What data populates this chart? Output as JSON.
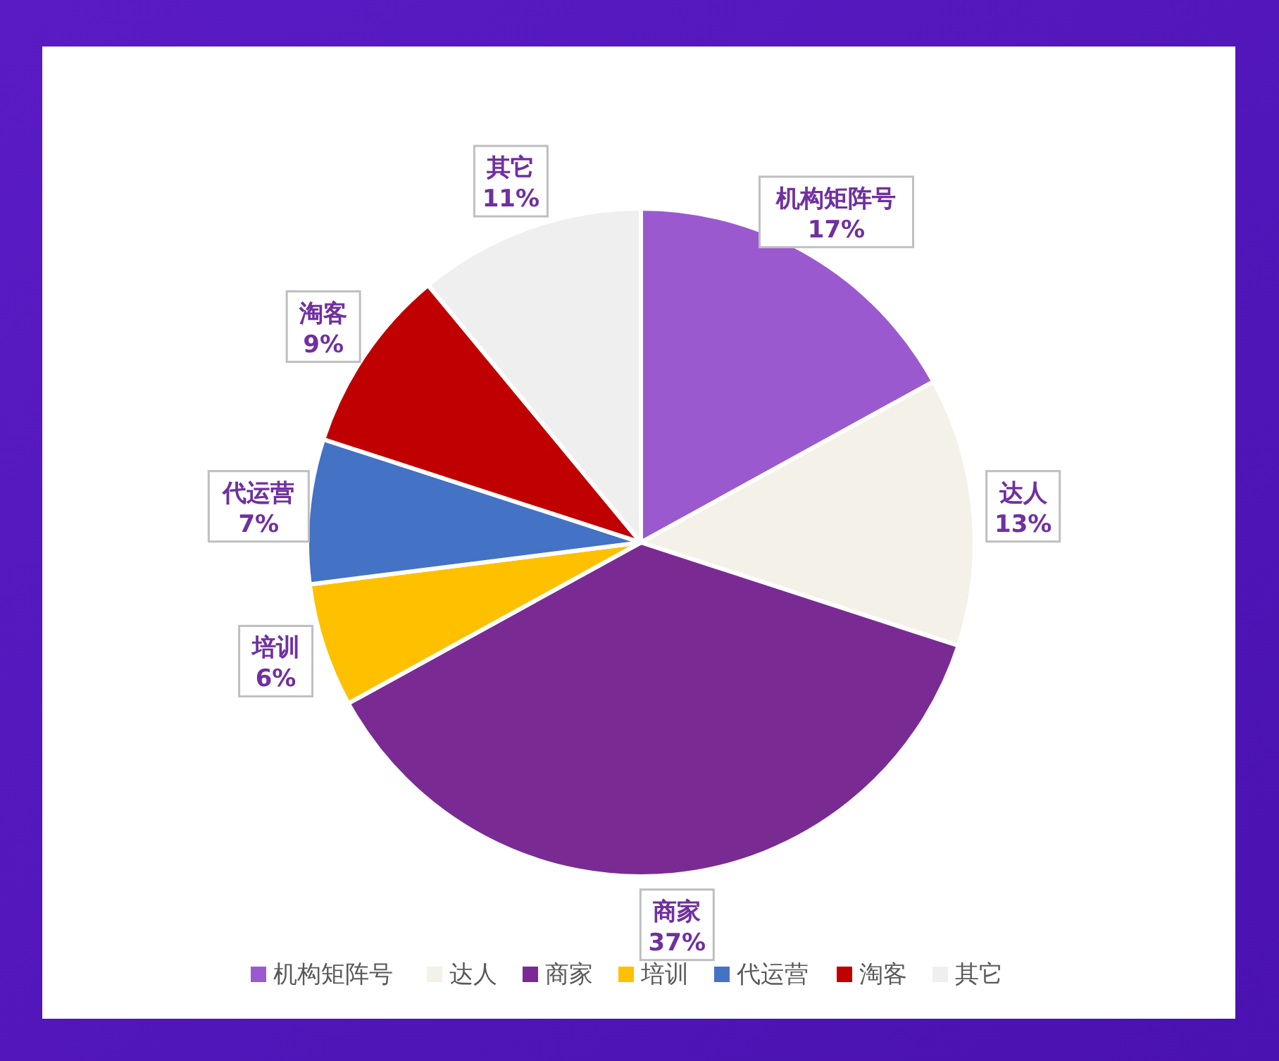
{
  "chart_data": {
    "type": "pie",
    "categories": [
      "机构矩阵号",
      "达人",
      "商家",
      "培训",
      "代运营",
      "淘客",
      "其它"
    ],
    "values": [
      17,
      13,
      37,
      6,
      7,
      9,
      11
    ],
    "colors": [
      "#9b59cf",
      "#f4f1e8",
      "#7a2b93",
      "#ffc000",
      "#4472c4",
      "#c00000",
      "#efefef"
    ],
    "value_labels": [
      "17%",
      "13%",
      "37%",
      "6%",
      "7%",
      "9%",
      "11%"
    ],
    "legend": "bottom"
  }
}
